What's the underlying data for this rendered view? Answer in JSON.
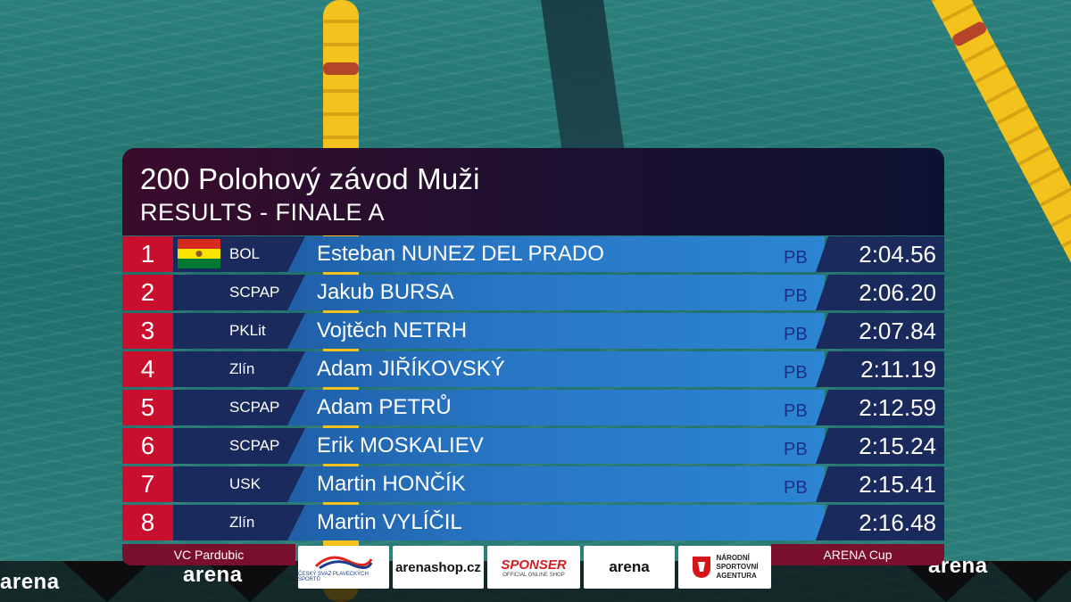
{
  "event": {
    "title": "200 Polohový závod Muži",
    "subtitle": "RESULTS - FINALE A"
  },
  "results": [
    {
      "rank": "1",
      "flag": "bolivia-flag",
      "club": "BOL",
      "name": "Esteban NUNEZ DEL PRADO",
      "pb": "PB",
      "time": "2:04.56"
    },
    {
      "rank": "2",
      "club": "SCPAP",
      "name": "Jakub BURSA",
      "pb": "PB",
      "time": "2:06.20"
    },
    {
      "rank": "3",
      "club": "PKLit",
      "name": "Vojtěch NETRH",
      "pb": "PB",
      "time": "2:07.84"
    },
    {
      "rank": "4",
      "club": "Zlín",
      "name": "Adam JIŘÍKOVSKÝ",
      "pb": "PB",
      "time": "2:11.19"
    },
    {
      "rank": "5",
      "club": "SCPAP",
      "name": "Adam PETRŮ",
      "pb": "PB",
      "time": "2:12.59"
    },
    {
      "rank": "6",
      "club": "SCPAP",
      "name": "Erik MOSKALIEV",
      "pb": "PB",
      "time": "2:15.24"
    },
    {
      "rank": "7",
      "club": "USK",
      "name": "Martin HONČÍK",
      "pb": "PB",
      "time": "2:15.41"
    },
    {
      "rank": "8",
      "club": "Zlín",
      "name": "Martin VYLÍČIL",
      "pb": "",
      "time": "2:16.48"
    }
  ],
  "footer": {
    "left": "VC Pardubic",
    "right": "ARENA Cup"
  },
  "sponsors": {
    "s1_caption": "ČESKÝ SVAZ PLAVECKÝCH SPORTŮ",
    "s2": "arenashop.cz",
    "s3": "SPONSER",
    "s3_caption": "OFFICIAL ONLINE SHOP",
    "s4": "arena",
    "s5_line1": "NÁRODNÍ",
    "s5_line2": "SPORTOVNÍ",
    "s5_line3": "AGENTURA"
  },
  "banner": {
    "brand": "arena"
  },
  "colors": {
    "rank_red": "#c8102e",
    "header_maroon": "#3a0c2c",
    "navy": "#1b2a5c",
    "lane_blue": "#2876c4",
    "footer_maroon": "#7a0f2d"
  }
}
